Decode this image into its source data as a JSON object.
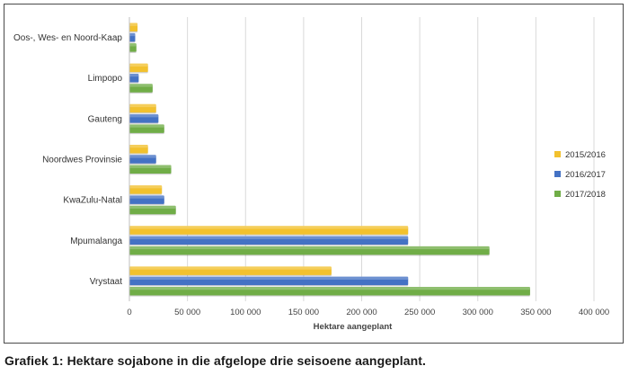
{
  "caption": "Grafiek 1: Hektare sojabone in die afgelope drie seisoene aangeplant.",
  "chart_data": {
    "type": "bar",
    "orientation": "horizontal",
    "title": "",
    "xlabel": "Hektare aangeplant",
    "ylabel": "",
    "xlim": [
      0,
      400000
    ],
    "x_ticks": [
      0,
      50000,
      100000,
      150000,
      200000,
      250000,
      300000,
      350000,
      400000
    ],
    "x_tick_labels": [
      "0",
      "50 000",
      "100 000",
      "150 000",
      "200 000",
      "250 000",
      "300 000",
      "350 000",
      "400 000"
    ],
    "grid": "vertical",
    "legend_position": "right",
    "categories": [
      "Oos-, Wes- en Noord-Kaap",
      "Limpopo",
      "Gauteng",
      "Noordwes Provinsie",
      "KwaZulu-Natal",
      "Mpumalanga",
      "Vrystaat"
    ],
    "series": [
      {
        "name": "2015/2016",
        "color": "#f2c12e",
        "values": [
          7000,
          16000,
          23000,
          16000,
          28000,
          240000,
          174000
        ]
      },
      {
        "name": "2016/2017",
        "color": "#4472c4",
        "values": [
          5000,
          8000,
          25000,
          23000,
          30000,
          240000,
          240000
        ]
      },
      {
        "name": "2017/2018",
        "color": "#70ad47",
        "values": [
          6000,
          20000,
          30000,
          36000,
          40000,
          310000,
          345000
        ]
      }
    ]
  }
}
